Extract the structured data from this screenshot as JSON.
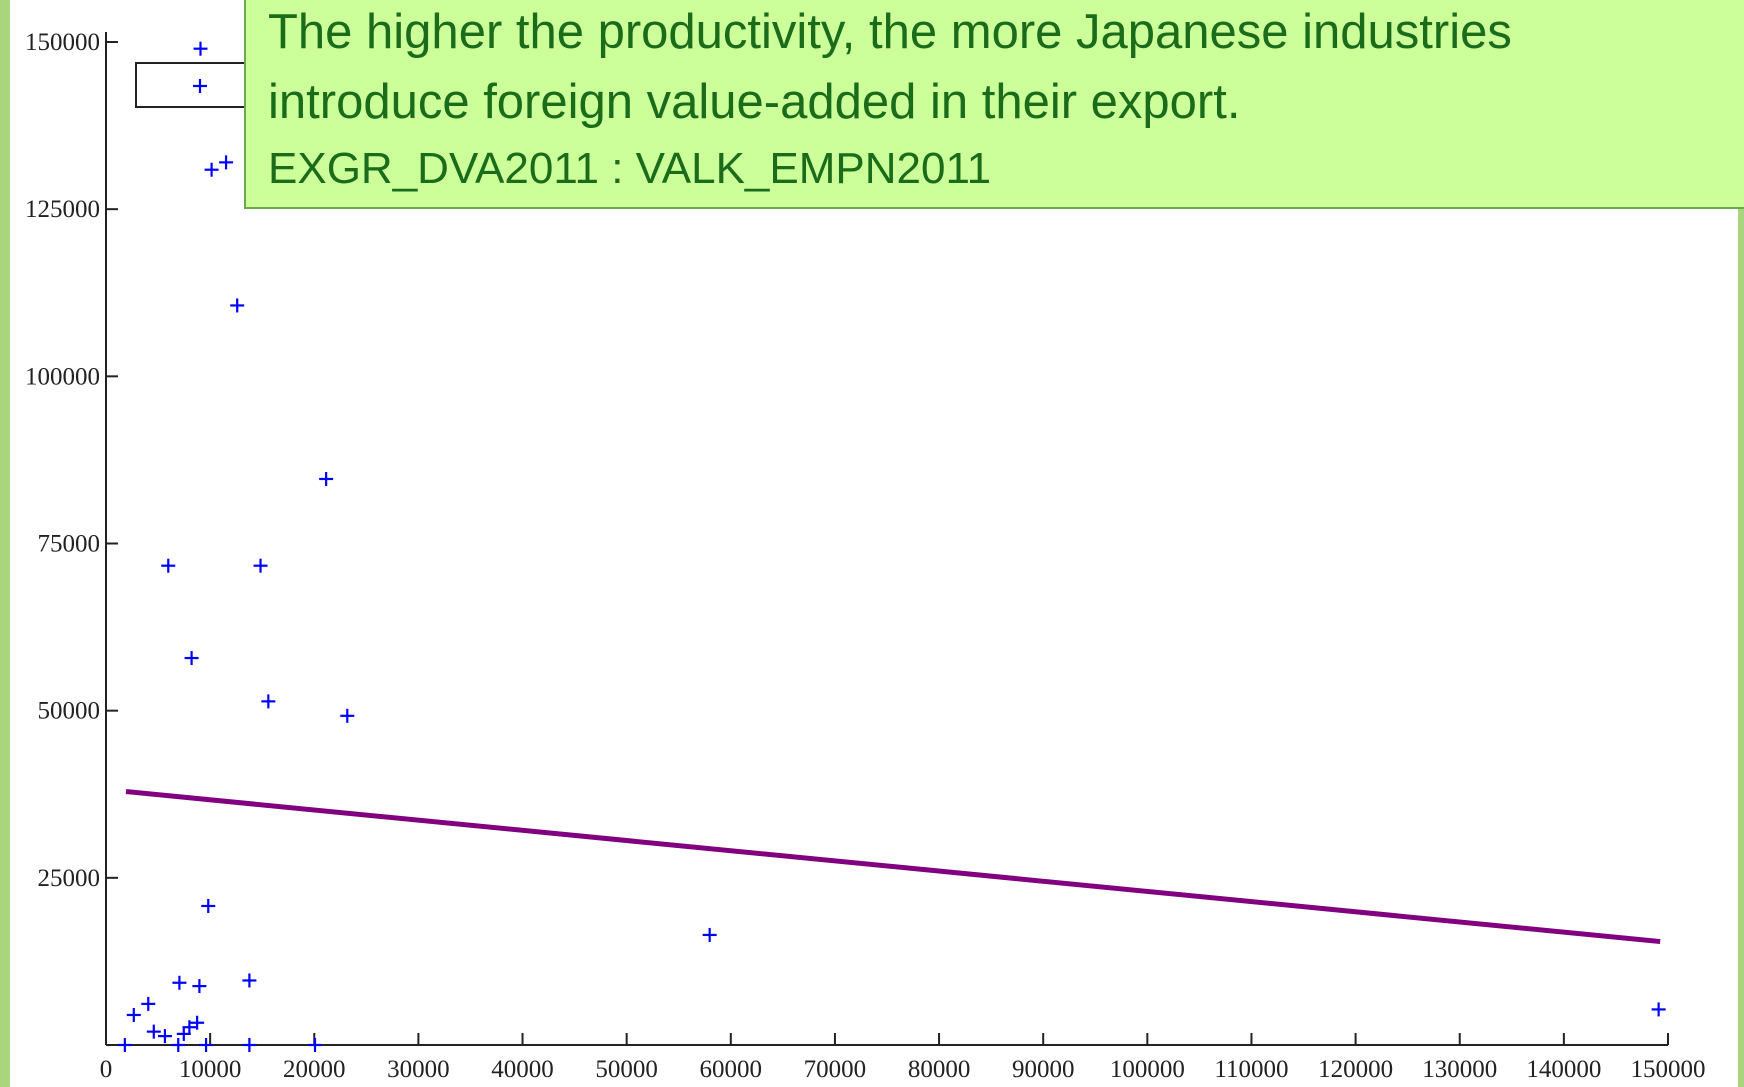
{
  "chart_data": {
    "type": "scatter",
    "annotation": [
      "The higher the productivity, the more Japanese industries",
      "introduce foreign value-added in their export.",
      "EXGR_DVA2011 : VALK_EMPN2011"
    ],
    "series": [
      {
        "color": "#0000ff",
        "x": [
          9075,
          10140,
          11530,
          12600,
          21140,
          5980,
          14840,
          8220,
          15590,
          23170,
          9820,
          57970,
          13770,
          7050,
          8970,
          2670,
          4060,
          4590,
          5660,
          7470,
          8010,
          8750,
          1810,
          6940,
          9610,
          13770,
          20070,
          149100
        ],
        "values": [
          149000,
          130900,
          132000,
          110600,
          84650,
          71680,
          71680,
          57870,
          51390,
          49230,
          20790,
          16460,
          9650,
          9310,
          8810,
          4490,
          6150,
          2000,
          1330,
          1660,
          2660,
          3330,
          0,
          0,
          0,
          0,
          0,
          5320
        ]
      },
      {
        "type": "line",
        "color": "#800080",
        "x": [
          1920,
          149250
        ],
        "values": [
          37900,
          15470
        ]
      }
    ],
    "xlim": [
      0,
      150000
    ],
    "ylim": [
      0,
      150000
    ],
    "xticks": [
      0,
      10000,
      20000,
      30000,
      40000,
      50000,
      60000,
      70000,
      80000,
      90000,
      100000,
      110000,
      120000,
      130000,
      140000,
      150000
    ],
    "yticks": [
      25000,
      50000,
      75000,
      100000,
      125000,
      150000
    ]
  }
}
